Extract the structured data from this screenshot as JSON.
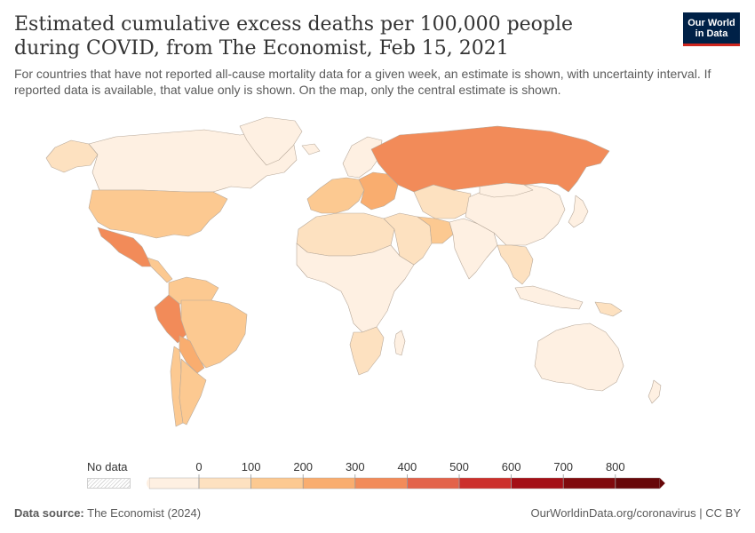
{
  "title": "Estimated cumulative excess deaths per 100,000 people during COVID, from The Economist, Feb 15, 2021",
  "subtitle": "For countries that have not reported all-cause mortality data for a given week, an estimate is shown, with uncertainty interval. If reported data is available, that value only is shown. On the map, only the central estimate is shown.",
  "logo": {
    "line1": "Our World",
    "line2": "in Data"
  },
  "legend": {
    "no_data_label": "No data",
    "ticks": [
      "0",
      "100",
      "200",
      "300",
      "400",
      "500",
      "600",
      "700",
      "800"
    ],
    "bin_colors": [
      "#fef0e2",
      "#fde1c0",
      "#fcc991",
      "#f9ad6f",
      "#f28b59",
      "#e3634a",
      "#cc2f2b",
      "#a40f16",
      "#800a0d",
      "#670709"
    ]
  },
  "footer": {
    "source_label": "Data source:",
    "source_value": "The Economist (2024)",
    "right": "OurWorldinData.org/coronavirus | CC BY"
  },
  "colors": {
    "ocean": "#ffffff",
    "border": "#b8a99a",
    "bin0": "#fef0e2",
    "bin1": "#fde1c0",
    "bin2": "#fcc991",
    "bin3": "#f9ad6f",
    "bin4": "#f28b59",
    "bin5": "#e3634a"
  },
  "regions": [
    {
      "name": "alaska",
      "bin": 1
    },
    {
      "name": "canada",
      "bin": 0
    },
    {
      "name": "greenland",
      "bin": 0
    },
    {
      "name": "usa",
      "bin": 2
    },
    {
      "name": "mexico",
      "bin": 4
    },
    {
      "name": "central-america",
      "bin": 2
    },
    {
      "name": "colombia-venezuela",
      "bin": 2
    },
    {
      "name": "peru",
      "bin": 4
    },
    {
      "name": "brazil",
      "bin": 2
    },
    {
      "name": "bolivia-paraguay",
      "bin": 3
    },
    {
      "name": "chile",
      "bin": 2
    },
    {
      "name": "argentina",
      "bin": 2
    },
    {
      "name": "iceland",
      "bin": 0
    },
    {
      "name": "scandinavia",
      "bin": 0
    },
    {
      "name": "western-europe",
      "bin": 2
    },
    {
      "name": "eastern-europe",
      "bin": 3
    },
    {
      "name": "russia",
      "bin": 4
    },
    {
      "name": "north-africa",
      "bin": 1
    },
    {
      "name": "sub-saharan-africa",
      "bin": 0
    },
    {
      "name": "southern-africa",
      "bin": 1
    },
    {
      "name": "madagascar",
      "bin": 0
    },
    {
      "name": "middle-east",
      "bin": 1
    },
    {
      "name": "central-asia",
      "bin": 1
    },
    {
      "name": "iran",
      "bin": 2
    },
    {
      "name": "south-asia",
      "bin": 0
    },
    {
      "name": "china",
      "bin": 0
    },
    {
      "name": "mongolia",
      "bin": 0
    },
    {
      "name": "southeast-asia",
      "bin": 1
    },
    {
      "name": "japan",
      "bin": 0
    },
    {
      "name": "indonesia",
      "bin": 0
    },
    {
      "name": "papua",
      "bin": 1
    },
    {
      "name": "australia",
      "bin": 0
    },
    {
      "name": "new-zealand",
      "bin": 0
    }
  ]
}
